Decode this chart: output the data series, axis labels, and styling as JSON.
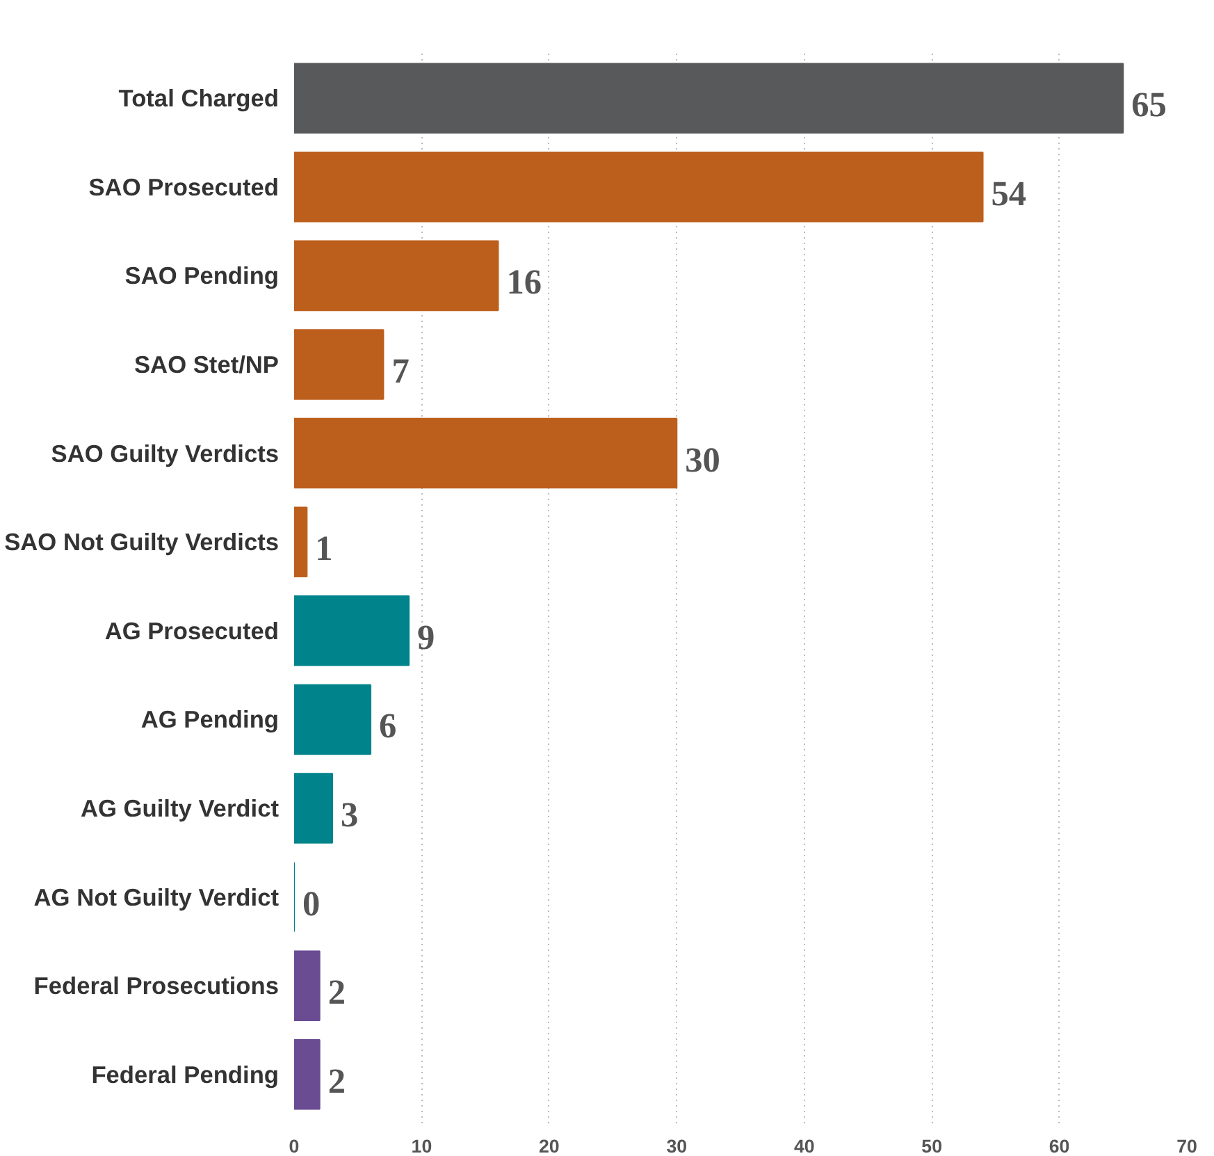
{
  "chart_data": {
    "type": "bar",
    "orientation": "horizontal",
    "categories": [
      "Total Charged",
      "SAO Prosecuted",
      "SAO Pending",
      "SAO Stet/NP",
      "SAO Guilty Verdicts",
      "SAO Not Guilty Verdicts",
      "AG Prosecuted",
      "AG Pending",
      "AG Guilty Verdict",
      "AG Not Guilty Verdict",
      "Federal Prosecutions",
      "Federal Pending"
    ],
    "values": [
      65,
      54,
      16,
      7,
      30,
      1,
      9,
      6,
      3,
      0,
      2,
      2
    ],
    "colors": [
      "#58595b",
      "#bd5f1c",
      "#bd5f1c",
      "#bd5f1c",
      "#bd5f1c",
      "#bd5f1c",
      "#00838a",
      "#00838a",
      "#00838a",
      "#00838a",
      "#6a4c93",
      "#6a4c93"
    ],
    "xlim": [
      0,
      70
    ],
    "xticks": [
      0,
      10,
      20,
      30,
      40,
      50,
      60,
      70
    ],
    "grid": "x",
    "data_labels": true
  }
}
